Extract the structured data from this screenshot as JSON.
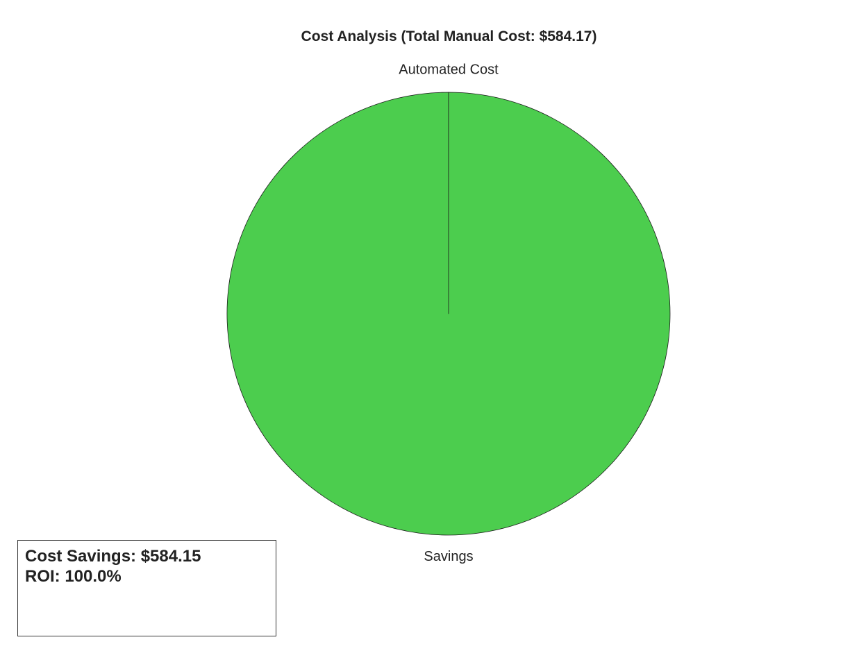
{
  "chart_data": {
    "type": "pie",
    "title": "Cost Analysis (Total Manual Cost: $584.17)",
    "slices": [
      {
        "label": "Automated Cost",
        "value": 0.02,
        "color": "#e8423f"
      },
      {
        "label": "Savings",
        "value": 584.15,
        "color": "#4ccd4e"
      }
    ],
    "start_angle_deg": 90,
    "direction": "counterclockwise"
  },
  "info_box": {
    "savings_text": "Cost Savings: $584.15",
    "roi_text": "ROI: 100.0%"
  },
  "colors": {
    "edge": "#1a1a1a",
    "text": "#222222"
  }
}
